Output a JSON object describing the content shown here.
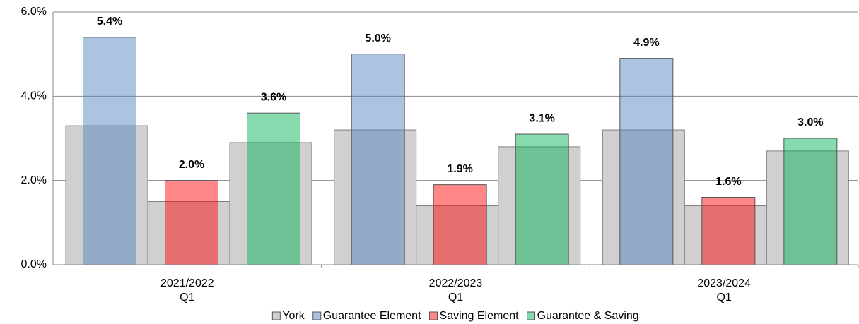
{
  "chart_data": {
    "type": "bar",
    "categories": [
      "2021/2022\nQ1",
      "2022/2023\nQ1",
      "2023/2024\nQ1"
    ],
    "series": [
      {
        "name": "York",
        "color": "#d0d0d0",
        "values": [
          [
            3.3,
            1.5,
            2.9
          ],
          [
            3.2,
            1.4,
            2.8
          ],
          [
            3.2,
            1.4,
            2.7
          ]
        ]
      },
      {
        "name": "Guarantee Element",
        "color": "#4f81bd",
        "values": [
          5.4,
          5.0,
          4.9
        ],
        "value_labels": [
          "5.4%",
          "5.0%",
          "4.9%"
        ]
      },
      {
        "name": "Saving Element",
        "color": "#ff0000",
        "values": [
          2.0,
          1.9,
          1.6
        ],
        "value_labels": [
          "2.0%",
          "1.9%",
          "1.6%"
        ]
      },
      {
        "name": "Guarantee & Saving",
        "color": "#00b050",
        "values": [
          3.6,
          3.1,
          3.0
        ],
        "value_labels": [
          "3.6%",
          "3.1%",
          "3.0%"
        ]
      }
    ],
    "ylim": [
      0,
      6
    ],
    "yticks": [
      {
        "value": 0,
        "label": "0.0%"
      },
      {
        "value": 2,
        "label": "2.0%"
      },
      {
        "value": 4,
        "label": "4.0%"
      },
      {
        "value": 6,
        "label": "6.0%"
      }
    ],
    "grid": true,
    "legend": "bottom"
  }
}
